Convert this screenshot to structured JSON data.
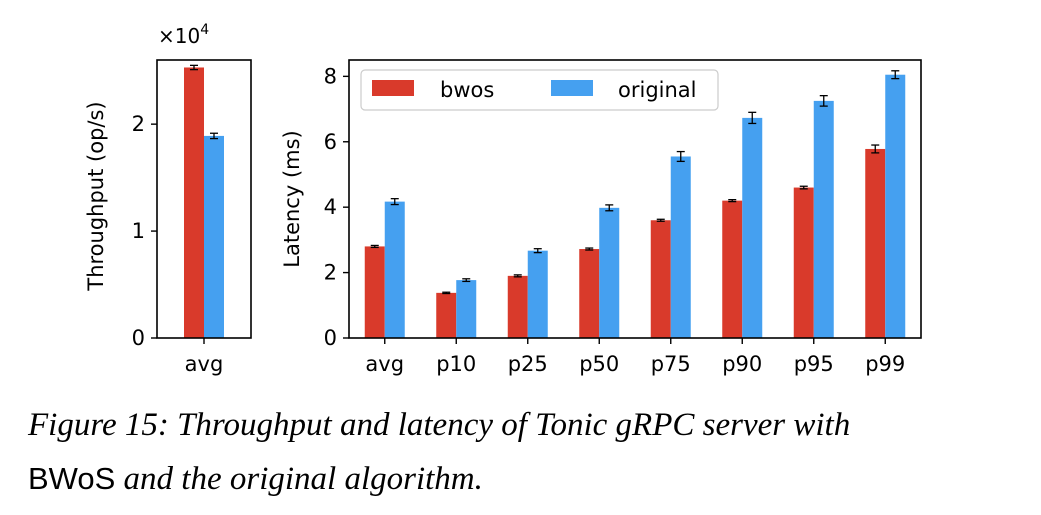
{
  "colors": {
    "bwos": "#d93a2b",
    "original": "#45a0f0"
  },
  "chart_data": [
    {
      "type": "bar",
      "categories": [
        "avg"
      ],
      "series": [
        {
          "name": "bwos",
          "values": [
            25300
          ],
          "errors": [
            200
          ]
        },
        {
          "name": "original",
          "values": [
            18900
          ],
          "errors": [
            250
          ]
        }
      ],
      "xlabel": "",
      "ylabel": "Throughput (op/s)",
      "ylim": [
        0,
        26000
      ],
      "yticks": [
        0,
        1,
        2
      ],
      "scale_label": "×10",
      "scale_exp": "4",
      "grid": false
    },
    {
      "type": "bar",
      "categories": [
        "avg",
        "p10",
        "p25",
        "p50",
        "p75",
        "p90",
        "p95",
        "p99"
      ],
      "series": [
        {
          "name": "bwos",
          "values": [
            2.8,
            1.38,
            1.9,
            2.72,
            3.6,
            4.2,
            4.6,
            5.78
          ],
          "errors": [
            0.03,
            0.02,
            0.03,
            0.03,
            0.03,
            0.03,
            0.04,
            0.12
          ]
        },
        {
          "name": "original",
          "values": [
            4.17,
            1.77,
            2.67,
            3.98,
            5.55,
            6.73,
            7.25,
            8.05
          ],
          "errors": [
            0.09,
            0.04,
            0.06,
            0.09,
            0.15,
            0.17,
            0.16,
            0.12
          ]
        }
      ],
      "xlabel": "",
      "ylabel": "Latency (ms)",
      "ylim": [
        0,
        8.5
      ],
      "yticks": [
        0,
        2,
        4,
        6,
        8
      ],
      "legend": {
        "position": "upper-left",
        "columns": 2,
        "entries": [
          "bwos",
          "original"
        ]
      },
      "grid": false
    }
  ],
  "caption": {
    "prefix": "Figure 15: Throughput and latency of Tonic gRPC server with",
    "system": "BWoS",
    "suffix": " and the original algorithm."
  }
}
